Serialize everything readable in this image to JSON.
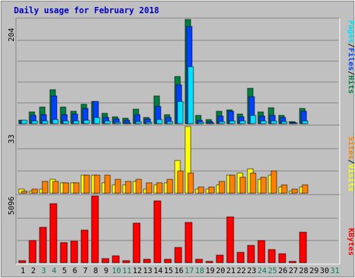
{
  "page": {
    "title": "Daily usage for February 2018"
  },
  "colors": {
    "background": "#c0c0c0",
    "plot_bg": "#c0c0c0",
    "grid": "#808080",
    "hits": "#008040",
    "files": "#0040ff",
    "pages": "#00e0ff",
    "visits": "#ffff00",
    "sites": "#ff8000",
    "kbytes": "#ff0000",
    "weekday": "#000000",
    "weekend": "#00805a"
  },
  "chart_data": [
    {
      "type": "bar",
      "panel": "hits-files-pages",
      "ymax_label": "204",
      "ylim": [
        0,
        204
      ],
      "categories": [
        "1",
        "2",
        "3",
        "4",
        "5",
        "6",
        "7",
        "8",
        "9",
        "10",
        "11",
        "12",
        "13",
        "14",
        "15",
        "16",
        "17",
        "18",
        "19",
        "20",
        "21",
        "22",
        "23",
        "24",
        "25",
        "26",
        "27",
        "28",
        "29",
        "30",
        "31"
      ],
      "series": [
        {
          "name": "Hits",
          "values": [
            7,
            23,
            32,
            67,
            33,
            25,
            38,
            44,
            21,
            14,
            11,
            29,
            12,
            55,
            18,
            92,
            204,
            16,
            8,
            24,
            27,
            19,
            70,
            23,
            31,
            16,
            4,
            30,
            0,
            0,
            0
          ]
        },
        {
          "name": "Files",
          "values": [
            7,
            16,
            18,
            54,
            18,
            19,
            30,
            43,
            12,
            10,
            7,
            18,
            10,
            34,
            12,
            76,
            190,
            7,
            4,
            15,
            25,
            14,
            53,
            15,
            16,
            12,
            3,
            24,
            0,
            0,
            0
          ]
        },
        {
          "name": "Pages",
          "values": [
            7,
            5,
            5,
            8,
            5,
            5,
            7,
            12,
            5,
            3,
            2,
            4,
            3,
            8,
            4,
            43,
            112,
            3,
            2,
            4,
            5,
            5,
            16,
            5,
            6,
            4,
            2,
            5,
            0,
            0,
            0
          ]
        }
      ],
      "legend": [
        "Pages",
        "Files",
        "Hits"
      ]
    },
    {
      "type": "bar",
      "panel": "visits-sites",
      "ymax_label": "33",
      "ylim": [
        0,
        33
      ],
      "categories": [
        "1",
        "2",
        "3",
        "4",
        "5",
        "6",
        "7",
        "8",
        "9",
        "10",
        "11",
        "12",
        "13",
        "14",
        "15",
        "16",
        "17",
        "18",
        "19",
        "20",
        "21",
        "22",
        "23",
        "24",
        "25",
        "26",
        "27",
        "28",
        "29",
        "30",
        "31"
      ],
      "series": [
        {
          "name": "Visits",
          "values": [
            2,
            1,
            2,
            7,
            5,
            5,
            9,
            9,
            5,
            4,
            4,
            6,
            2,
            4,
            5,
            16,
            33,
            2,
            2,
            4,
            9,
            10,
            12,
            7,
            9,
            3,
            1,
            3,
            0,
            0,
            0
          ]
        },
        {
          "name": "Sites",
          "values": [
            1,
            2,
            6,
            6,
            5,
            5,
            9,
            9,
            9,
            7,
            6,
            7,
            5,
            5,
            7,
            11,
            10,
            3,
            3,
            6,
            9,
            8,
            10,
            8,
            11,
            4,
            2,
            4,
            0,
            0,
            0
          ]
        }
      ],
      "legend": [
        "Sites",
        "Visits"
      ]
    },
    {
      "type": "bar",
      "panel": "kbytes",
      "ymax_label": "5096",
      "ylim": [
        0,
        5096
      ],
      "categories": [
        "1",
        "2",
        "3",
        "4",
        "5",
        "6",
        "7",
        "8",
        "9",
        "10",
        "11",
        "12",
        "13",
        "14",
        "15",
        "16",
        "17",
        "18",
        "19",
        "20",
        "21",
        "22",
        "23",
        "24",
        "25",
        "26",
        "27",
        "28",
        "29",
        "30",
        "31"
      ],
      "series": [
        {
          "name": "KBytes",
          "values": [
            150,
            1700,
            2700,
            4500,
            1550,
            1650,
            2500,
            5096,
            300,
            550,
            150,
            3000,
            250,
            4700,
            250,
            1150,
            3080,
            250,
            100,
            600,
            3500,
            790,
            1350,
            1700,
            1000,
            700,
            100,
            2330,
            0,
            0,
            0
          ]
        }
      ],
      "legend": [
        "KBytes"
      ]
    }
  ],
  "x_axis": {
    "days": [
      {
        "label": "1",
        "weekend": false
      },
      {
        "label": "2",
        "weekend": false
      },
      {
        "label": "3",
        "weekend": true
      },
      {
        "label": "4",
        "weekend": true
      },
      {
        "label": "5",
        "weekend": false
      },
      {
        "label": "6",
        "weekend": false
      },
      {
        "label": "7",
        "weekend": false
      },
      {
        "label": "8",
        "weekend": false
      },
      {
        "label": "9",
        "weekend": false
      },
      {
        "label": "10",
        "weekend": true
      },
      {
        "label": "11",
        "weekend": true
      },
      {
        "label": "12",
        "weekend": false
      },
      {
        "label": "13",
        "weekend": false
      },
      {
        "label": "14",
        "weekend": false
      },
      {
        "label": "15",
        "weekend": false
      },
      {
        "label": "16",
        "weekend": false
      },
      {
        "label": "17",
        "weekend": true
      },
      {
        "label": "18",
        "weekend": true
      },
      {
        "label": "19",
        "weekend": false
      },
      {
        "label": "20",
        "weekend": false
      },
      {
        "label": "21",
        "weekend": false
      },
      {
        "label": "22",
        "weekend": false
      },
      {
        "label": "23",
        "weekend": false
      },
      {
        "label": "24",
        "weekend": true
      },
      {
        "label": "25",
        "weekend": true
      },
      {
        "label": "26",
        "weekend": false
      },
      {
        "label": "27",
        "weekend": false
      },
      {
        "label": "28",
        "weekend": false
      },
      {
        "label": "29",
        "weekend": false
      },
      {
        "label": "30",
        "weekend": false
      },
      {
        "label": "31",
        "weekend": true
      }
    ]
  },
  "legend_text": {
    "panel1": {
      "pages": "Pages",
      "sep1": "/",
      "files": "Files",
      "sep2": "/",
      "hits": "Hits"
    },
    "panel2": {
      "sites": "Sites",
      "sep1": "/",
      "visits": "Visits"
    },
    "panel3": {
      "kbytes": "KBytes"
    }
  }
}
